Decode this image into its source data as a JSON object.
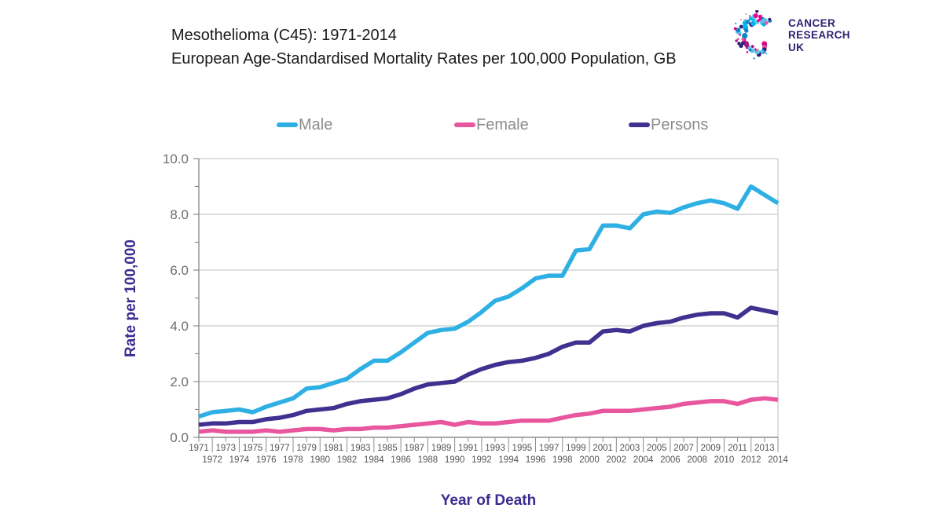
{
  "header": {
    "title_line1": "Mesothelioma (C45): 1971-2014",
    "title_line2": "European Age-Standardised Mortality Rates per 100,000 Population, GB"
  },
  "logo": {
    "line1": "CANCER",
    "line2": "RESEARCH",
    "line3": "UK",
    "text_color": "#2e2073",
    "dot_colors": [
      "#00b6ed",
      "#0e86c5",
      "#ec008c",
      "#a71580",
      "#2e2073",
      "#e85ca4",
      "#5dc6e8"
    ]
  },
  "chart_data": {
    "type": "line",
    "title": "Mesothelioma (C45): 1971-2014, European Age-Standardised Mortality Rates per 100,000 Population, GB",
    "xlabel": "Year of Death",
    "ylabel": "Rate per 100,000",
    "ylim": [
      0,
      10
    ],
    "yticks": [
      0,
      2,
      4,
      6,
      8,
      10
    ],
    "ytick_labels": [
      "0.0",
      "2.0",
      "4.0",
      "6.0",
      "8.0",
      "10.0"
    ],
    "grid": true,
    "legend_position": "top",
    "x": [
      1971,
      1972,
      1973,
      1974,
      1975,
      1976,
      1977,
      1978,
      1979,
      1980,
      1981,
      1982,
      1983,
      1984,
      1985,
      1986,
      1987,
      1988,
      1989,
      1990,
      1991,
      1992,
      1993,
      1994,
      1995,
      1996,
      1997,
      1998,
      1999,
      2000,
      2001,
      2002,
      2003,
      2004,
      2005,
      2006,
      2007,
      2008,
      2009,
      2010,
      2011,
      2012,
      2013,
      2014
    ],
    "series": [
      {
        "name": "Male",
        "color": "#2fb0e4",
        "values": [
          0.75,
          0.9,
          0.95,
          1.0,
          0.9,
          1.1,
          1.25,
          1.4,
          1.75,
          1.8,
          1.95,
          2.1,
          2.45,
          2.75,
          2.75,
          3.05,
          3.4,
          3.75,
          3.85,
          3.9,
          4.15,
          4.5,
          4.9,
          5.05,
          5.35,
          5.7,
          5.8,
          5.8,
          6.7,
          6.75,
          7.6,
          7.6,
          7.5,
          8.0,
          8.1,
          8.05,
          8.25,
          8.4,
          8.5,
          8.4,
          8.2,
          9.0,
          8.7,
          8.4
        ]
      },
      {
        "name": "Female",
        "color": "#e8579e",
        "values": [
          0.2,
          0.25,
          0.2,
          0.2,
          0.2,
          0.25,
          0.2,
          0.25,
          0.3,
          0.3,
          0.25,
          0.3,
          0.3,
          0.35,
          0.35,
          0.4,
          0.45,
          0.5,
          0.55,
          0.45,
          0.55,
          0.5,
          0.5,
          0.55,
          0.6,
          0.6,
          0.6,
          0.7,
          0.8,
          0.85,
          0.95,
          0.95,
          0.95,
          1.0,
          1.05,
          1.1,
          1.2,
          1.25,
          1.3,
          1.3,
          1.2,
          1.35,
          1.4,
          1.35
        ]
      },
      {
        "name": "Persons",
        "color": "#41308f",
        "values": [
          0.45,
          0.5,
          0.5,
          0.55,
          0.55,
          0.65,
          0.7,
          0.8,
          0.95,
          1.0,
          1.05,
          1.2,
          1.3,
          1.35,
          1.4,
          1.55,
          1.75,
          1.9,
          1.95,
          2.0,
          2.25,
          2.45,
          2.6,
          2.7,
          2.75,
          2.85,
          3.0,
          3.25,
          3.4,
          3.4,
          3.8,
          3.85,
          3.8,
          4.0,
          4.1,
          4.15,
          4.3,
          4.4,
          4.45,
          4.45,
          4.3,
          4.65,
          4.55,
          4.45
        ]
      }
    ],
    "style": {
      "grid_color": "#c9c9c9",
      "axis_color": "#8c8c8c",
      "ytick_text_color": "#6e6e6e",
      "xtick_text_color": "#555555",
      "axis_title_color": "#3a2d8f",
      "line_width": 5.5
    }
  }
}
